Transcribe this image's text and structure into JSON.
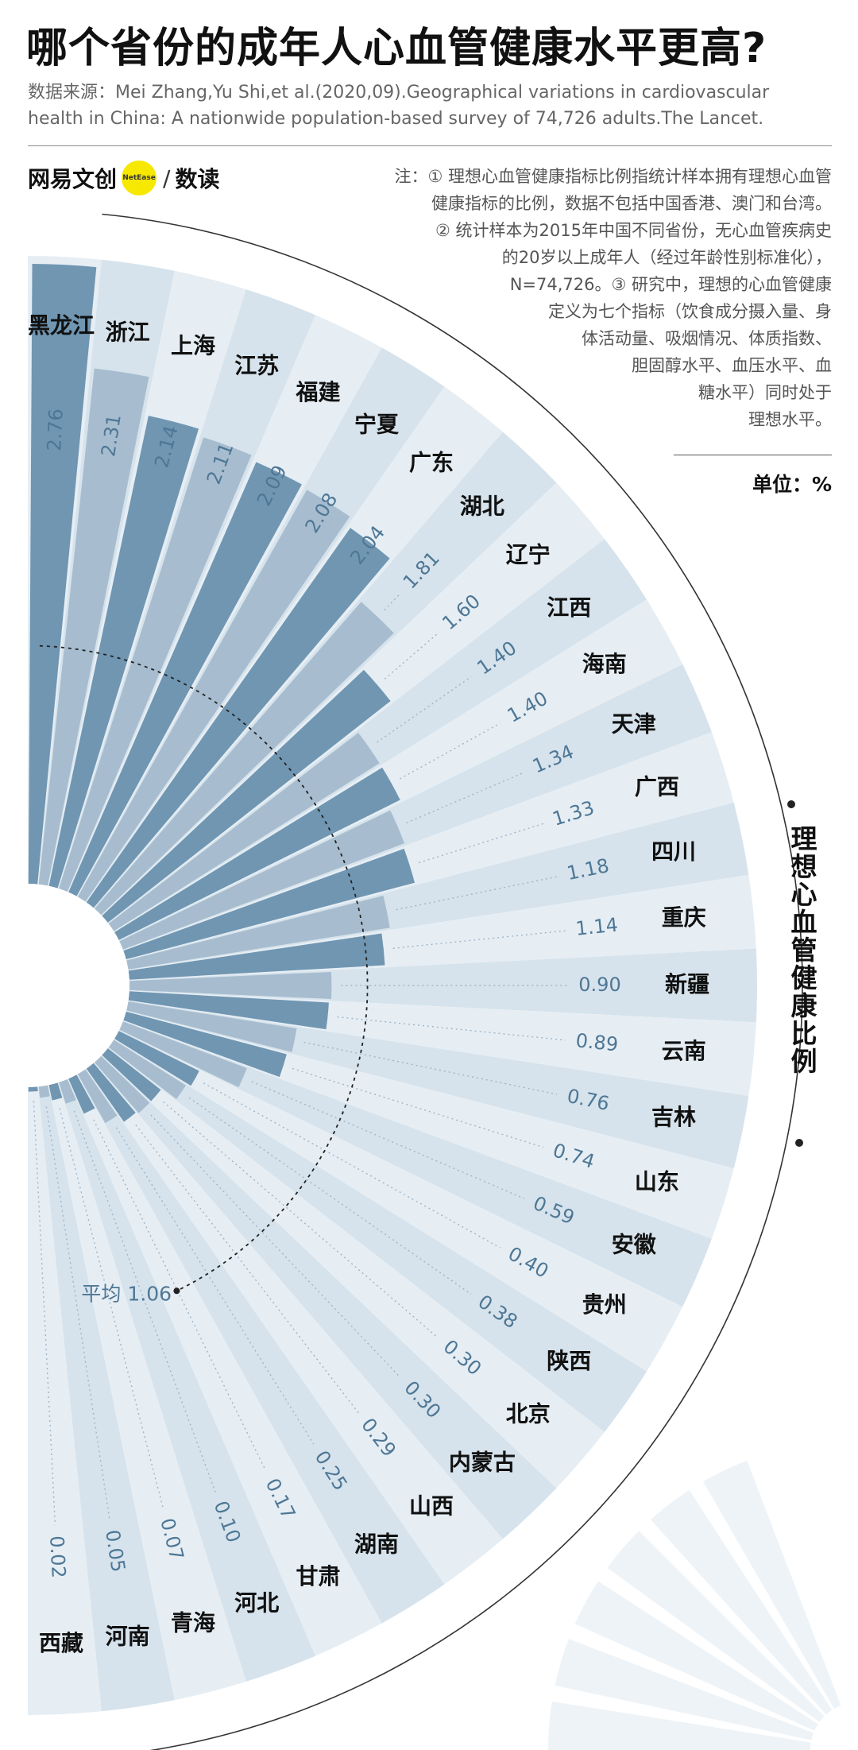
{
  "header": {
    "title": "哪个省份的成年人心血管健康水平更高?",
    "source_line1": "数据来源：Mei Zhang,Yu Shi,et al.(2020,09).Geographical variations in cardiovascular",
    "source_line2": "health in China: A nationwide population-based survey of 74,726 adults.The Lancet."
  },
  "brand": {
    "name_left": "网易文创",
    "badge": "NetEase",
    "slash": "/",
    "name_right": "数读",
    "badge_color": "#F6E800"
  },
  "note": {
    "lines": [
      "注：① 理想心血管健康指标比例指统计样本拥有理想心血管",
      "健康指标的比例，数据不包括中国香港、澳门和台湾。",
      "② 统计样本为2015年中国不同省份，无心血管疾病史",
      "的20岁以上成年人（经过年龄性别标准化），",
      "N=74,726。③ 研究中，理想的心血管健康",
      "定义为七个指标（饮食成分摄入量、身",
      "体活动量、吸烟情况、体质指数、",
      "胆固醇水平、血压水平、血",
      "糖水平）同时处于",
      "理想水平。"
    ]
  },
  "unit": "单位：%",
  "axis_label": "理想心血管健康比例",
  "chart_data": {
    "type": "bar",
    "layout": "radial half-circle",
    "unit": "%",
    "categories": [
      "黑龙江",
      "浙江",
      "上海",
      "江苏",
      "福建",
      "宁夏",
      "广东",
      "湖北",
      "辽宁",
      "江西",
      "海南",
      "天津",
      "广西",
      "四川",
      "重庆",
      "新疆",
      "云南",
      "吉林",
      "山东",
      "安徽",
      "贵州",
      "陕西",
      "北京",
      "内蒙古",
      "山西",
      "湖南",
      "甘肃",
      "河北",
      "青海",
      "河南",
      "西藏"
    ],
    "values": [
      2.76,
      2.31,
      2.14,
      2.11,
      2.09,
      2.08,
      2.04,
      1.81,
      1.6,
      1.4,
      1.4,
      1.34,
      1.33,
      1.18,
      1.14,
      0.9,
      0.89,
      0.76,
      0.74,
      0.59,
      0.4,
      0.38,
      0.3,
      0.3,
      0.29,
      0.25,
      0.17,
      0.1,
      0.07,
      0.05,
      0.02
    ],
    "value_labels": [
      "2.76",
      "2.31",
      "2.14",
      "2.11",
      "2.09",
      "2.08",
      "2.04",
      "1.81",
      "1.60",
      "1.40",
      "1.40",
      "1.34",
      "1.33",
      "1.18",
      "1.14",
      "0.90",
      "0.89",
      "0.76",
      "0.74",
      "0.59",
      "0.40",
      "0.38",
      "0.30",
      "0.30",
      "0.29",
      "0.25",
      "0.17",
      "0.10",
      "0.07",
      "0.05",
      "0.02"
    ],
    "average": 1.06,
    "average_label": "平均 1.06",
    "colors": {
      "bar_dark": "#7096B2",
      "bar_light": "#A7BDCF",
      "bg_a": "#E6EEF4",
      "bg_b": "#D6E3EC",
      "value_text": "#4E7795",
      "label_text": "#111111"
    }
  }
}
